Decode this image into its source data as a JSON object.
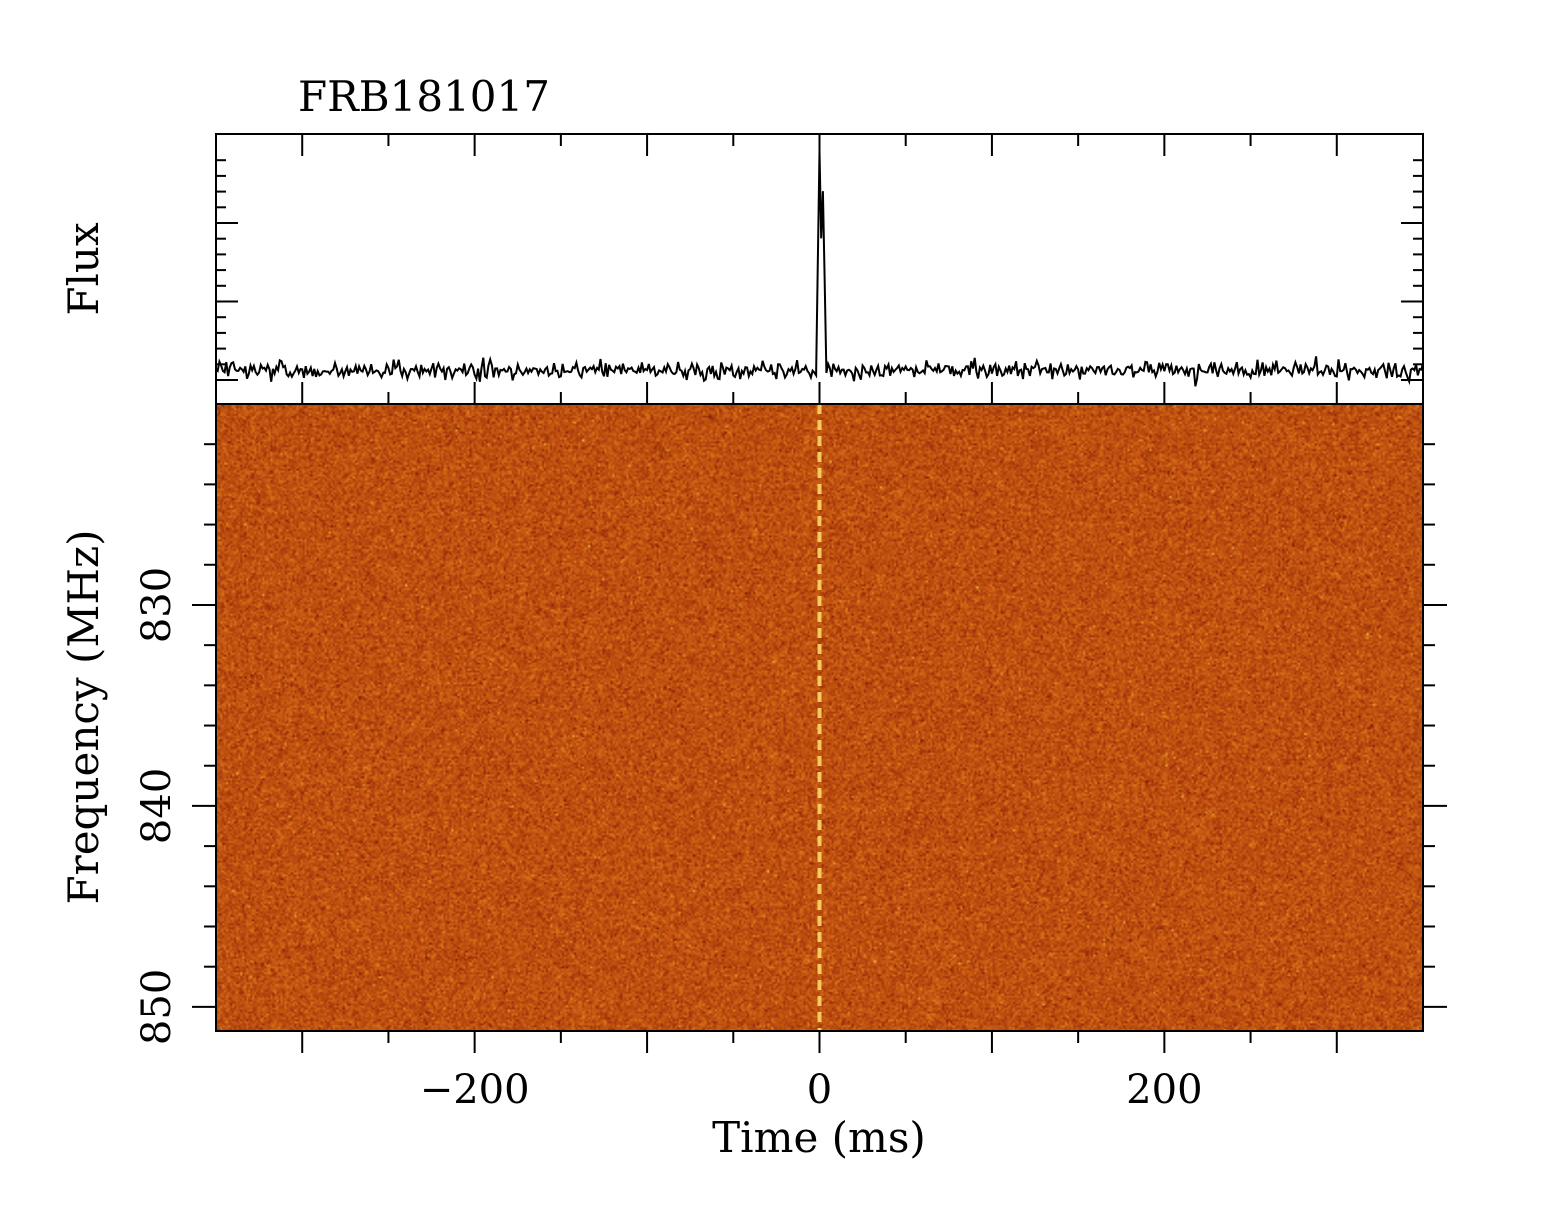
{
  "chart_data": [
    {
      "type": "line",
      "panel": "top",
      "title": "FRB181017",
      "ylabel": "Flux",
      "xlim": [
        -350,
        350
      ],
      "series": [
        {
          "points": [
            [
              -350,
              0.04
            ],
            [
              -10,
              0.06
            ],
            [
              -2,
              0.02
            ],
            [
              0,
              0.97
            ],
            [
              1,
              0.6
            ],
            [
              2,
              0.8
            ],
            [
              4,
              0.03
            ],
            [
              350,
              0.04
            ]
          ]
        }
      ],
      "notes": "noise baseline elsewhere"
    },
    {
      "type": "heatmap",
      "panel": "bottom",
      "xlabel": "Time (ms)",
      "ylabel": "Frequency (MHz)",
      "xlim": [
        -350,
        350
      ],
      "ylim": [
        851.2,
        820
      ],
      "x_ticks": [
        {
          "value": -200,
          "label": "−200"
        },
        {
          "value": 0,
          "label": "0"
        },
        {
          "value": 200,
          "label": "200"
        }
      ],
      "y_ticks": [
        {
          "value": 830,
          "label": "830"
        },
        {
          "value": 840,
          "label": "840"
        },
        {
          "value": 850,
          "label": "850"
        }
      ],
      "signal_time": 0,
      "colormap": [
        "#7a1a05",
        "#a83a0c",
        "#c85a12",
        "#e07f1c",
        "#f7d24a"
      ]
    }
  ]
}
